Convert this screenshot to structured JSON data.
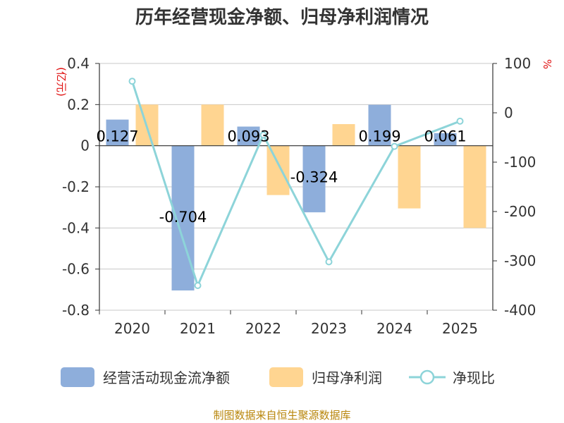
{
  "chart_data": {
    "type": "bar",
    "title": "历年经营现金净额、归母净利润情况",
    "categories": [
      "2020",
      "2021",
      "2022",
      "2023",
      "2024",
      "2025"
    ],
    "series": [
      {
        "name": "经营活动现金流净额",
        "type": "bar",
        "axis": "left",
        "color": "#8eaedb",
        "values": [
          0.127,
          -0.704,
          0.093,
          -0.324,
          0.199,
          0.061
        ],
        "labels": [
          "0.127",
          "-0.704",
          "0.093",
          "-0.324",
          "0.199",
          "0.061"
        ]
      },
      {
        "name": "归母净利润",
        "type": "bar",
        "axis": "left",
        "color": "#ffd591",
        "values": [
          0.2,
          0.2,
          -0.24,
          0.105,
          -0.305,
          -0.4
        ]
      },
      {
        "name": "净现比",
        "type": "line",
        "axis": "right",
        "color": "#8dd4d9",
        "values": [
          64,
          -350,
          -45,
          -302,
          -68,
          -17
        ]
      }
    ],
    "left_axis": {
      "unit": "(亿元)",
      "ylim": [
        -0.8,
        0.4
      ],
      "ticks": [
        0.4,
        0.2,
        0,
        -0.2,
        -0.4,
        -0.6,
        -0.8
      ],
      "tick_labels": [
        "0.4",
        "0.2",
        "0",
        "-0.2",
        "-0.4",
        "-0.6",
        "-0.8"
      ]
    },
    "right_axis": {
      "unit": "%",
      "ylim": [
        -400,
        100
      ],
      "ticks": [
        100,
        0,
        -100,
        -200,
        -300,
        -400
      ],
      "tick_labels": [
        "100",
        "0",
        "-100",
        "-200",
        "-300",
        "-400"
      ]
    },
    "grid": true,
    "legend_position": "bottom",
    "source": "制图数据来自恒生聚源数据库"
  }
}
